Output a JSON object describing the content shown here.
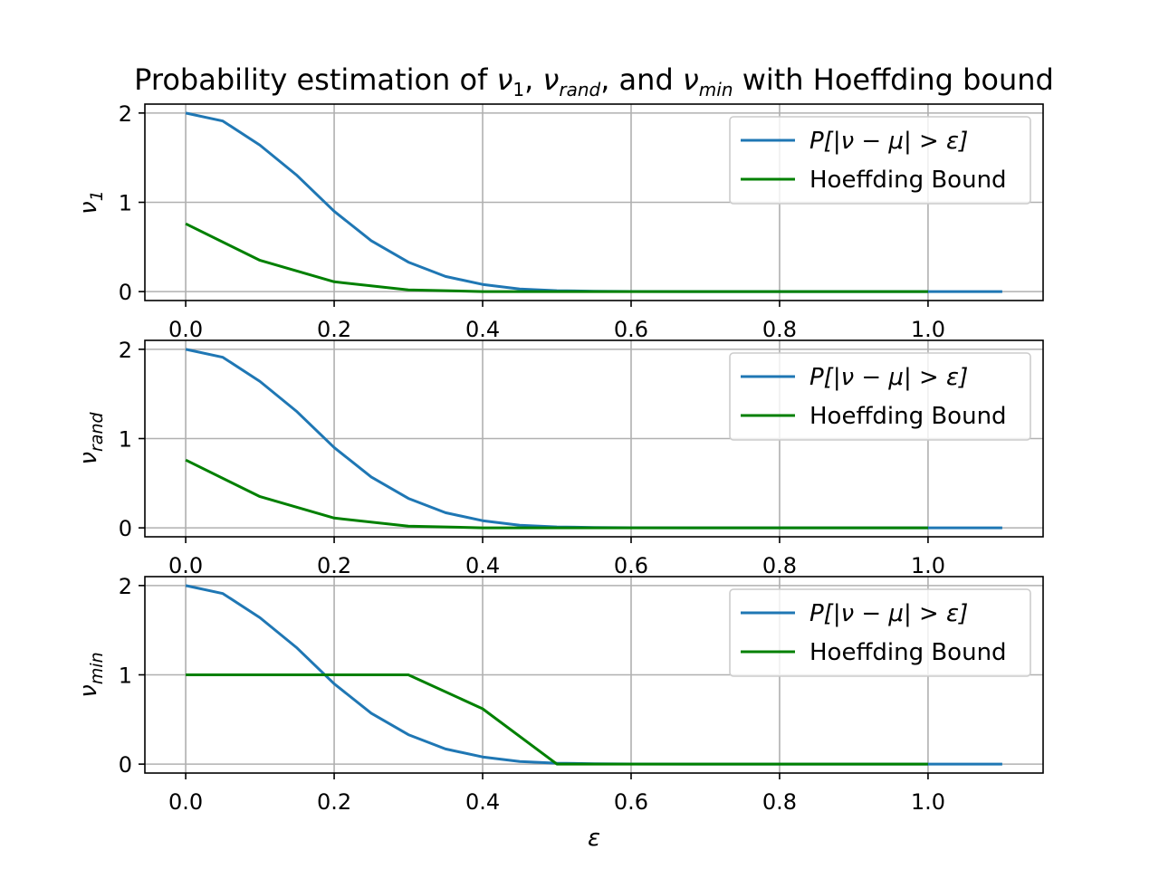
{
  "title": "Probability estimation of ν₁, ν_rand, and ν_min with Hoeffding bound",
  "title_parts": {
    "p1": "Probability estimation of ",
    "nu": "ν",
    "s1": "1",
    "p2": ", ",
    "s2": "rand",
    "p3": ", and ",
    "s3": "min",
    "p4": " with Hoeffding bound"
  },
  "xlabel": "ε",
  "colors": {
    "probability": "#1f77b4",
    "hoeffding": "#008000"
  },
  "legend": {
    "series1_label": "P[|ν − μ| > ε]",
    "series2_label": "Hoeffding Bound",
    "placement": "upper-right"
  },
  "chart_data": [
    {
      "type": "line",
      "ylabel": "ν₁",
      "ylabel_main": "ν",
      "ylabel_sub": "1",
      "xlim": [
        -0.055,
        1.155
      ],
      "ylim": [
        -0.1,
        2.1
      ],
      "xticks": [
        "0.0",
        "0.2",
        "0.4",
        "0.6",
        "0.8",
        "1.0"
      ],
      "yticks": [
        "0",
        "1",
        "2"
      ],
      "grid": true,
      "series": [
        {
          "name": "P[|ν − μ| > ε]",
          "x": [
            0.0,
            0.05,
            0.1,
            0.15,
            0.2,
            0.25,
            0.3,
            0.35,
            0.4,
            0.45,
            0.5,
            0.55,
            0.6,
            0.7,
            0.8,
            0.9,
            1.0,
            1.1
          ],
          "y": [
            2.0,
            1.91,
            1.64,
            1.3,
            0.9,
            0.57,
            0.33,
            0.17,
            0.08,
            0.03,
            0.01,
            0.004,
            0.001,
            0.0,
            0.0,
            0.0,
            0.0,
            0.0
          ]
        },
        {
          "name": "Hoeffding Bound",
          "x": [
            0.0,
            0.1,
            0.2,
            0.3,
            0.4,
            0.5,
            0.6,
            0.7,
            0.8,
            0.9,
            1.0
          ],
          "y": [
            0.76,
            0.35,
            0.11,
            0.02,
            0.0,
            0.0,
            0.0,
            0.0,
            0.0,
            0.0,
            0.0
          ]
        }
      ]
    },
    {
      "type": "line",
      "ylabel": "ν_rand",
      "ylabel_main": "ν",
      "ylabel_sub": "rand",
      "xlim": [
        -0.055,
        1.155
      ],
      "ylim": [
        -0.1,
        2.1
      ],
      "xticks": [
        "0.0",
        "0.2",
        "0.4",
        "0.6",
        "0.8",
        "1.0"
      ],
      "yticks": [
        "0",
        "1",
        "2"
      ],
      "grid": true,
      "series": [
        {
          "name": "P[|ν − μ| > ε]",
          "x": [
            0.0,
            0.05,
            0.1,
            0.15,
            0.2,
            0.25,
            0.3,
            0.35,
            0.4,
            0.45,
            0.5,
            0.55,
            0.6,
            0.7,
            0.8,
            0.9,
            1.0,
            1.1
          ],
          "y": [
            2.0,
            1.91,
            1.64,
            1.3,
            0.9,
            0.57,
            0.33,
            0.17,
            0.08,
            0.03,
            0.01,
            0.004,
            0.001,
            0.0,
            0.0,
            0.0,
            0.0,
            0.0
          ]
        },
        {
          "name": "Hoeffding Bound",
          "x": [
            0.0,
            0.1,
            0.2,
            0.3,
            0.4,
            0.5,
            0.6,
            0.7,
            0.8,
            0.9,
            1.0
          ],
          "y": [
            0.76,
            0.35,
            0.11,
            0.02,
            0.0,
            0.0,
            0.0,
            0.0,
            0.0,
            0.0,
            0.0
          ]
        }
      ]
    },
    {
      "type": "line",
      "ylabel": "ν_min",
      "ylabel_main": "ν",
      "ylabel_sub": "min",
      "xlim": [
        -0.055,
        1.155
      ],
      "ylim": [
        -0.1,
        2.1
      ],
      "xticks": [
        "0.0",
        "0.2",
        "0.4",
        "0.6",
        "0.8",
        "1.0"
      ],
      "yticks": [
        "0",
        "1",
        "2"
      ],
      "grid": true,
      "series": [
        {
          "name": "P[|ν − μ| > ε]",
          "x": [
            0.0,
            0.05,
            0.1,
            0.15,
            0.2,
            0.25,
            0.3,
            0.35,
            0.4,
            0.45,
            0.5,
            0.55,
            0.6,
            0.7,
            0.8,
            0.9,
            1.0,
            1.1
          ],
          "y": [
            2.0,
            1.91,
            1.64,
            1.3,
            0.9,
            0.57,
            0.33,
            0.17,
            0.08,
            0.03,
            0.01,
            0.004,
            0.001,
            0.0,
            0.0,
            0.0,
            0.0,
            0.0
          ]
        },
        {
          "name": "Hoeffding Bound",
          "x": [
            0.0,
            0.1,
            0.2,
            0.3,
            0.4,
            0.5,
            0.6,
            0.7,
            0.8,
            0.9,
            1.0
          ],
          "y": [
            1.0,
            1.0,
            1.0,
            1.0,
            0.62,
            0.0,
            0.0,
            0.0,
            0.0,
            0.0,
            0.0
          ]
        }
      ]
    }
  ]
}
